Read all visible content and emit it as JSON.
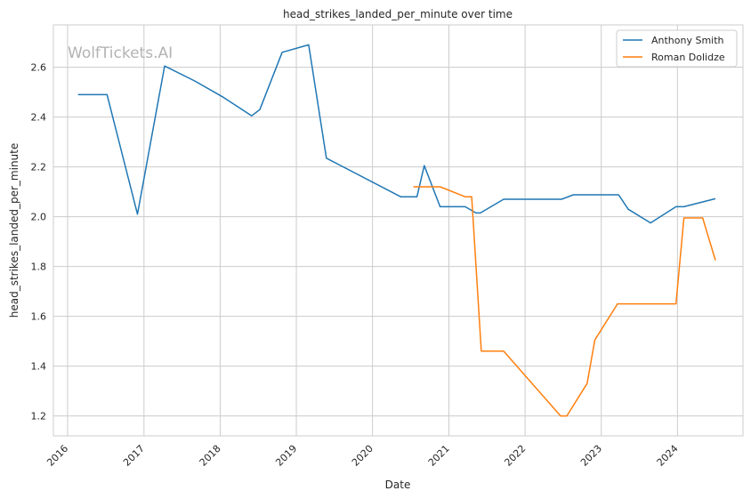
{
  "chart_data": {
    "type": "line",
    "title": "head_strikes_landed_per_minute over time",
    "xlabel": "Date",
    "ylabel": "head_strikes_landed_per_minute",
    "watermark": "WolfTickets.AI",
    "x_ticks": [
      "2016",
      "2017",
      "2018",
      "2019",
      "2020",
      "2021",
      "2022",
      "2023",
      "2024"
    ],
    "y_ticks": [
      "1.2",
      "1.4",
      "1.6",
      "1.8",
      "2.0",
      "2.2",
      "2.4",
      "2.6"
    ],
    "xlim": [
      "2015-10-25",
      "2024-11-10"
    ],
    "ylim": [
      1.12,
      2.77
    ],
    "grid": true,
    "legend_position": "top-right",
    "series": [
      {
        "name": "Anthony Smith",
        "color": "#1f77b4",
        "points": [
          [
            "2016-02-20",
            2.49
          ],
          [
            "2016-07-08",
            2.49
          ],
          [
            "2016-12-01",
            2.01
          ],
          [
            "2017-04-10",
            2.605
          ],
          [
            "2017-09-01",
            2.545
          ],
          [
            "2018-01-15",
            2.48
          ],
          [
            "2018-06-01",
            2.405
          ],
          [
            "2018-07-10",
            2.43
          ],
          [
            "2018-10-25",
            2.66
          ],
          [
            "2019-03-01",
            2.69
          ],
          [
            "2019-05-25",
            2.235
          ],
          [
            "2020-05-15",
            2.08
          ],
          [
            "2020-08-01",
            2.08
          ],
          [
            "2020-09-05",
            2.205
          ],
          [
            "2020-11-20",
            2.04
          ],
          [
            "2021-03-20",
            2.04
          ],
          [
            "2021-05-10",
            2.015
          ],
          [
            "2021-06-01",
            2.015
          ],
          [
            "2021-09-20",
            2.07
          ],
          [
            "2022-06-25",
            2.07
          ],
          [
            "2022-08-20",
            2.088
          ],
          [
            "2023-03-25",
            2.088
          ],
          [
            "2023-05-10",
            2.03
          ],
          [
            "2023-08-25",
            1.975
          ],
          [
            "2023-12-25",
            2.04
          ],
          [
            "2024-02-01",
            2.04
          ],
          [
            "2024-07-01",
            2.072
          ]
        ]
      },
      {
        "name": "Roman Dolidze",
        "color": "#ff7f0e",
        "points": [
          [
            "2020-07-15",
            2.12
          ],
          [
            "2020-11-20",
            2.12
          ],
          [
            "2021-03-20",
            2.08
          ],
          [
            "2021-04-20",
            2.08
          ],
          [
            "2021-06-05",
            1.46
          ],
          [
            "2021-09-20",
            1.46
          ],
          [
            "2022-06-20",
            1.2
          ],
          [
            "2022-07-20",
            1.2
          ],
          [
            "2022-10-25",
            1.33
          ],
          [
            "2022-12-01",
            1.505
          ],
          [
            "2023-03-20",
            1.65
          ],
          [
            "2023-12-25",
            1.65
          ],
          [
            "2024-02-01",
            1.995
          ],
          [
            "2024-05-01",
            1.995
          ],
          [
            "2024-07-01",
            1.825
          ]
        ]
      }
    ]
  }
}
